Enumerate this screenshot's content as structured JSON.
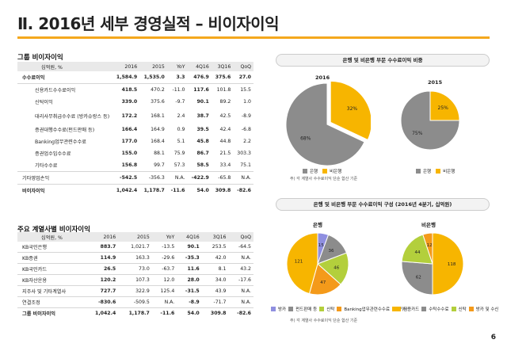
{
  "page": {
    "title": "Ⅱ. 2016년 세부 경영실적 – 비이자이익",
    "page_number": "6"
  },
  "group_table": {
    "section_title": "그룹 비이자이익",
    "header": [
      "십억원, %",
      "2016",
      "2015",
      "YoY",
      "4Q16",
      "3Q16",
      "QoQ"
    ],
    "rows": [
      [
        "수수료이익",
        "1,584.9",
        "1,535.0",
        "3.3",
        "476.9",
        "375.6",
        "27.0"
      ],
      [
        "신용카드수수료이익",
        "418.5",
        "470.2",
        "-11.0",
        "117.6",
        "101.8",
        "15.5"
      ],
      [
        "신탁이익",
        "339.0",
        "375.6",
        "-9.7",
        "90.1",
        "89.2",
        "1.0"
      ],
      [
        "대리사무취급수수료 (방카슈랑스 등)",
        "172.2",
        "168.1",
        "2.4",
        "38.7",
        "42.5",
        "-8.9"
      ],
      [
        "증권대행수수료(펀드판매 등)",
        "166.4",
        "164.9",
        "0.9",
        "39.5",
        "42.4",
        "-6.8"
      ],
      [
        "Banking업무관련수수료",
        "177.0",
        "168.4",
        "5.1",
        "45.8",
        "44.8",
        "2.2"
      ],
      [
        "증권업수입수수료",
        "155.0",
        "88.1",
        "75.9",
        "86.7",
        "21.5",
        "303.3"
      ],
      [
        "기타수수료",
        "156.8",
        "99.7",
        "57.3",
        "58.5",
        "33.4",
        "75.1"
      ],
      [
        "기타영업손익",
        "-542.5",
        "-356.3",
        "N.A.",
        "-422.9",
        "-65.8",
        "N.A."
      ],
      [
        "비이자이익",
        "1,042.4",
        "1,178.7",
        "-11.6",
        "54.0",
        "309.8",
        "-82.6"
      ]
    ]
  },
  "affiliate_table": {
    "section_title": "주요 계열사별 비이자이익",
    "header": [
      "십억원, %",
      "2016",
      "2015",
      "YoY",
      "4Q16",
      "3Q16",
      "QoQ"
    ],
    "rows": [
      [
        "KB국민은행",
        "883.7",
        "1,021.7",
        "-13.5",
        "90.1",
        "253.5",
        "-64.5"
      ],
      [
        "KB증권",
        "114.9",
        "163.3",
        "-29.6",
        "-35.3",
        "42.0",
        "N.A."
      ],
      [
        "KB국민카드",
        "26.5",
        "73.0",
        "-63.7",
        "11.6",
        "8.1",
        "43.2"
      ],
      [
        "KB자산운용",
        "120.2",
        "107.3",
        "12.0",
        "28.0",
        "34.0",
        "-17.6"
      ],
      [
        "지주사 및 기타계열사",
        "727.7",
        "322.9",
        "125.4",
        "-31.5",
        "43.9",
        "N.A."
      ],
      [
        "연결조정",
        "-830.6",
        "-509.5",
        "N.A.",
        "-8.9",
        "-71.7",
        "N.A."
      ],
      [
        "그룹 비이자이익",
        "1,042.4",
        "1,178.7",
        "-11.6",
        "54.0",
        "309.8",
        "-82.6"
      ]
    ]
  },
  "chart_data": [
    {
      "type": "pie",
      "title": "은행 및 비은행 부문 수수료이익 비중",
      "subtitle": "2016",
      "labels": [
        "은행",
        "비은행"
      ],
      "values": [
        68,
        32
      ],
      "colors": [
        "#8c8c8c",
        "#f7b500"
      ]
    },
    {
      "type": "pie",
      "title": "은행 및 비은행 부문 수수료이익 비중",
      "subtitle": "2015",
      "labels": [
        "은행",
        "비은행"
      ],
      "values": [
        75,
        25
      ],
      "colors": [
        "#8c8c8c",
        "#f7b500"
      ]
    },
    {
      "type": "pie",
      "title": "은행 및 비은행 부문 수수료이익 구성 (2016년 4분기, 십억원)",
      "subtitle": "은행",
      "labels": [
        "방카",
        "펀드판매 등",
        "신탁",
        "Banking업무관련수수료",
        "기타"
      ],
      "values": [
        15,
        36,
        46,
        47,
        121
      ],
      "colors": [
        "#8f8fe0",
        "#8c8c8c",
        "#b3cf3c",
        "#f49a1a",
        "#f7b500"
      ]
    },
    {
      "type": "pie",
      "title": "은행 및 비은행 부문 수수료이익 구성 (2016년 4분기, 십억원)",
      "subtitle": "비은행",
      "labels": [
        "신용카드",
        "수탁수수료",
        "신탁",
        "방카 및 수신"
      ],
      "values": [
        118,
        62,
        44,
        12
      ],
      "colors": [
        "#f7b500",
        "#8c8c8c",
        "#b3cf3c",
        "#f49a1a"
      ]
    }
  ],
  "charts": {
    "box1_title": "은행 및 비은행 부문 수수료이익 비중",
    "box2_title": "은행 및 비은행 부문 수수료이익 구성 (2016년 4분기, 십억원)",
    "label_2016": "2016",
    "label_2015": "2015",
    "label_bank": "은행",
    "label_nonbank": "비은행",
    "legend_bank": "은행",
    "legend_nonbank": "비은행",
    "note1": "주) 각 계열사 수수료이익 단순 합산 기준",
    "note2": "주) 각 계열사 수수료이익 단순 합산 기준",
    "legend_bank_comp": [
      "방카",
      "펀드판매 등",
      "신탁",
      "Banking업무관련수수료",
      "기타"
    ],
    "legend_nonbank_comp": [
      "신용카드",
      "수탁수수료",
      "신탁",
      "방카 및 수신"
    ]
  }
}
